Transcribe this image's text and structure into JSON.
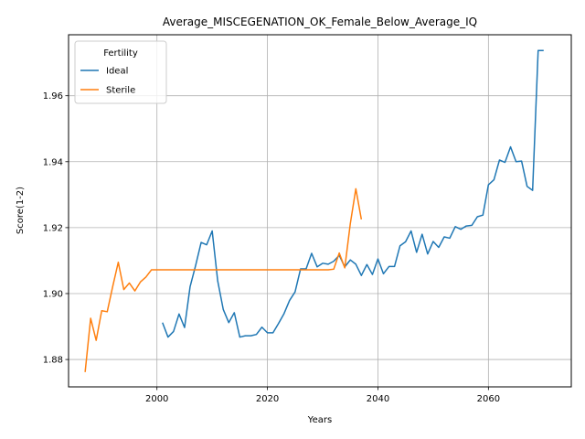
{
  "chart_data": {
    "type": "line",
    "title": "Average_MISCEGENATION_OK_Female_Below_Average_IQ",
    "xlabel": "Years",
    "ylabel": "Score(1-2)",
    "xlim": [
      1984,
      2075
    ],
    "ylim": [
      1.8717,
      1.9785
    ],
    "xticks": [
      2000,
      2020,
      2040,
      2060
    ],
    "xtick_labels": [
      "2000",
      "2020",
      "2040",
      "2060"
    ],
    "yticks": [
      1.88,
      1.9,
      1.92,
      1.94,
      1.96
    ],
    "ytick_labels": [
      "1.88",
      "1.90",
      "1.92",
      "1.94",
      "1.96"
    ],
    "grid": true,
    "legend": {
      "title": "Fertility",
      "location": "upper-left"
    },
    "series": [
      {
        "name": "Ideal",
        "color": "#1f77b4",
        "x": [
          2001,
          2002,
          2003,
          2004,
          2005,
          2006,
          2007,
          2008,
          2009,
          2010,
          2011,
          2012,
          2013,
          2014,
          2015,
          2016,
          2017,
          2018,
          2019,
          2020,
          2021,
          2022,
          2023,
          2024,
          2025,
          2026,
          2027,
          2028,
          2029,
          2030,
          2031,
          2032,
          2033,
          2034,
          2035,
          2036,
          2037,
          2038,
          2039,
          2040,
          2041,
          2042,
          2043,
          2044,
          2045,
          2046,
          2047,
          2048,
          2049,
          2050,
          2051,
          2052,
          2053,
          2054,
          2055,
          2056,
          2057,
          2058,
          2059,
          2060,
          2061,
          2062,
          2063,
          2064,
          2065,
          2066,
          2067,
          2068,
          2069,
          2070
        ],
        "y": [
          1.8912,
          1.8868,
          1.8885,
          1.8938,
          1.8897,
          1.9021,
          1.9085,
          1.9155,
          1.9148,
          1.919,
          1.9038,
          1.8952,
          1.8912,
          1.8942,
          1.8868,
          1.8872,
          1.8872,
          1.8876,
          1.8898,
          1.8881,
          1.8881,
          1.8909,
          1.8939,
          1.8979,
          1.9005,
          1.9075,
          1.9075,
          1.9122,
          1.9081,
          1.9092,
          1.9089,
          1.9098,
          1.9116,
          1.9081,
          1.9102,
          1.9089,
          1.9055,
          1.9088,
          1.9058,
          1.9105,
          1.906,
          1.9082,
          1.9082,
          1.9145,
          1.9157,
          1.919,
          1.9125,
          1.918,
          1.912,
          1.9158,
          1.914,
          1.9172,
          1.9168,
          1.9203,
          1.9195,
          1.9205,
          1.9207,
          1.9233,
          1.9238,
          1.933,
          1.9345,
          1.9405,
          1.9398,
          1.9445,
          1.94,
          1.9402,
          1.9325,
          1.9313,
          1.9737,
          1.9737
        ]
      },
      {
        "name": "Sterile",
        "color": "#ff7f0e",
        "x": [
          1987,
          1988,
          1989,
          1990,
          1991,
          1992,
          1993,
          1994,
          1995,
          1996,
          1997,
          1998,
          1999,
          2000,
          2001,
          2002,
          2003,
          2004,
          2005,
          2006,
          2007,
          2008,
          2009,
          2010,
          2011,
          2012,
          2013,
          2014,
          2015,
          2016,
          2017,
          2018,
          2019,
          2020,
          2021,
          2022,
          2023,
          2024,
          2025,
          2026,
          2027,
          2028,
          2029,
          2030,
          2031,
          2032,
          2033,
          2034,
          2035,
          2036,
          2037
        ],
        "y": [
          1.8762,
          1.8925,
          1.8858,
          1.8948,
          1.8945,
          1.9022,
          1.9095,
          1.9012,
          1.9032,
          1.9008,
          1.9035,
          1.905,
          1.9072,
          1.9072,
          1.9072,
          1.9072,
          1.9072,
          1.9072,
          1.9072,
          1.9072,
          1.9072,
          1.9072,
          1.9072,
          1.9072,
          1.9072,
          1.9072,
          1.9072,
          1.9072,
          1.9072,
          1.9072,
          1.9072,
          1.9072,
          1.9072,
          1.9072,
          1.9072,
          1.9072,
          1.9072,
          1.9072,
          1.9072,
          1.9072,
          1.9072,
          1.9072,
          1.9072,
          1.9072,
          1.9072,
          1.9074,
          1.9123,
          1.9078,
          1.9212,
          1.9318,
          1.9225
        ]
      }
    ]
  }
}
